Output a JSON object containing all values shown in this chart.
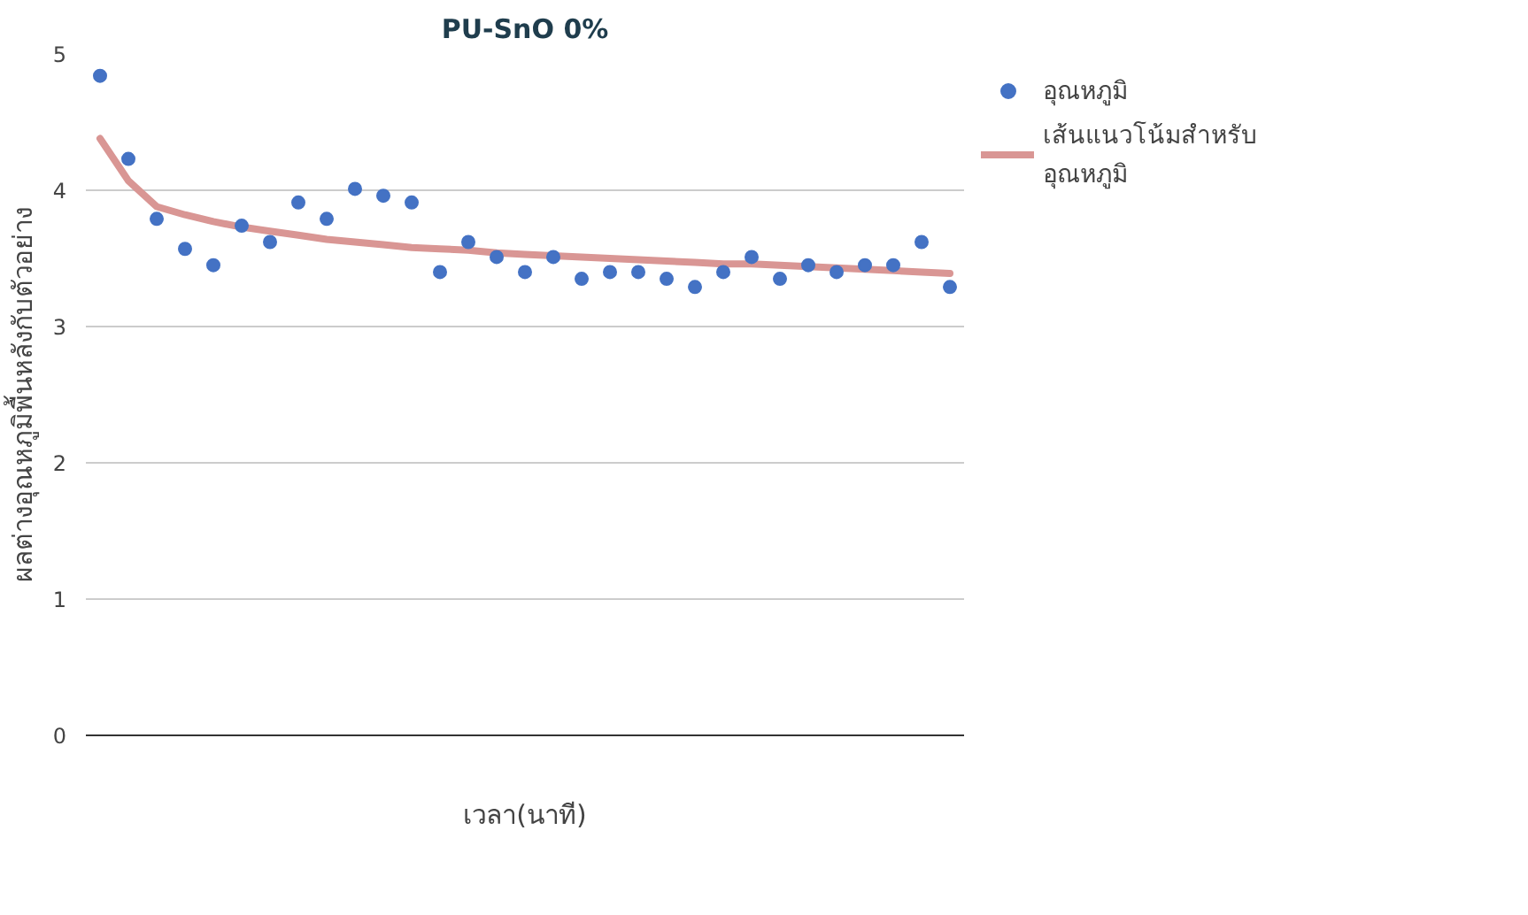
{
  "chart_data": {
    "type": "scatter",
    "title": "PU-SnO 0%",
    "xlabel": "เวลา(นาที)",
    "ylabel": "ผลต่างอุณหภูมิพื้นหลังกับตัวอย่าง",
    "categories": [
      null,
      null,
      null,
      null,
      null,
      null,
      null,
      null,
      null,
      null,
      null,
      null,
      null,
      null,
      null,
      null,
      null,
      null,
      null,
      null,
      null,
      null,
      null,
      null,
      null,
      null,
      null,
      null,
      null,
      null,
      null
    ],
    "ylim": [
      0,
      5
    ],
    "yticks": [
      0,
      1,
      2,
      3,
      4,
      5
    ],
    "tick_labels": "y",
    "grid": "y",
    "legend": "top right",
    "marker": "circle",
    "series": [
      {
        "name": "อุณหภูมิ",
        "color": "#4472c4",
        "values": [
          4.84,
          4.23,
          3.79,
          3.57,
          3.45,
          3.74,
          3.62,
          3.91,
          3.79,
          4.01,
          3.96,
          3.91,
          3.4,
          3.62,
          3.51,
          3.4,
          3.51,
          3.35,
          3.4,
          3.4,
          3.35,
          3.29,
          3.4,
          3.51,
          3.35,
          3.45,
          3.4,
          3.45,
          3.45,
          3.62,
          3.29
        ]
      },
      {
        "name": "เส้นแนวโน้มสำหรับ อุณหภูมิ",
        "type": "line",
        "marker": "none",
        "color": "#d99694",
        "values": [
          4.38,
          4.07,
          3.88,
          3.82,
          3.77,
          3.73,
          3.7,
          3.67,
          3.64,
          3.62,
          3.6,
          3.58,
          3.57,
          3.56,
          3.54,
          3.53,
          3.52,
          3.51,
          3.5,
          3.49,
          3.48,
          3.47,
          3.46,
          3.46,
          3.45,
          3.44,
          3.43,
          3.42,
          3.41,
          3.4,
          3.39
        ]
      }
    ]
  }
}
